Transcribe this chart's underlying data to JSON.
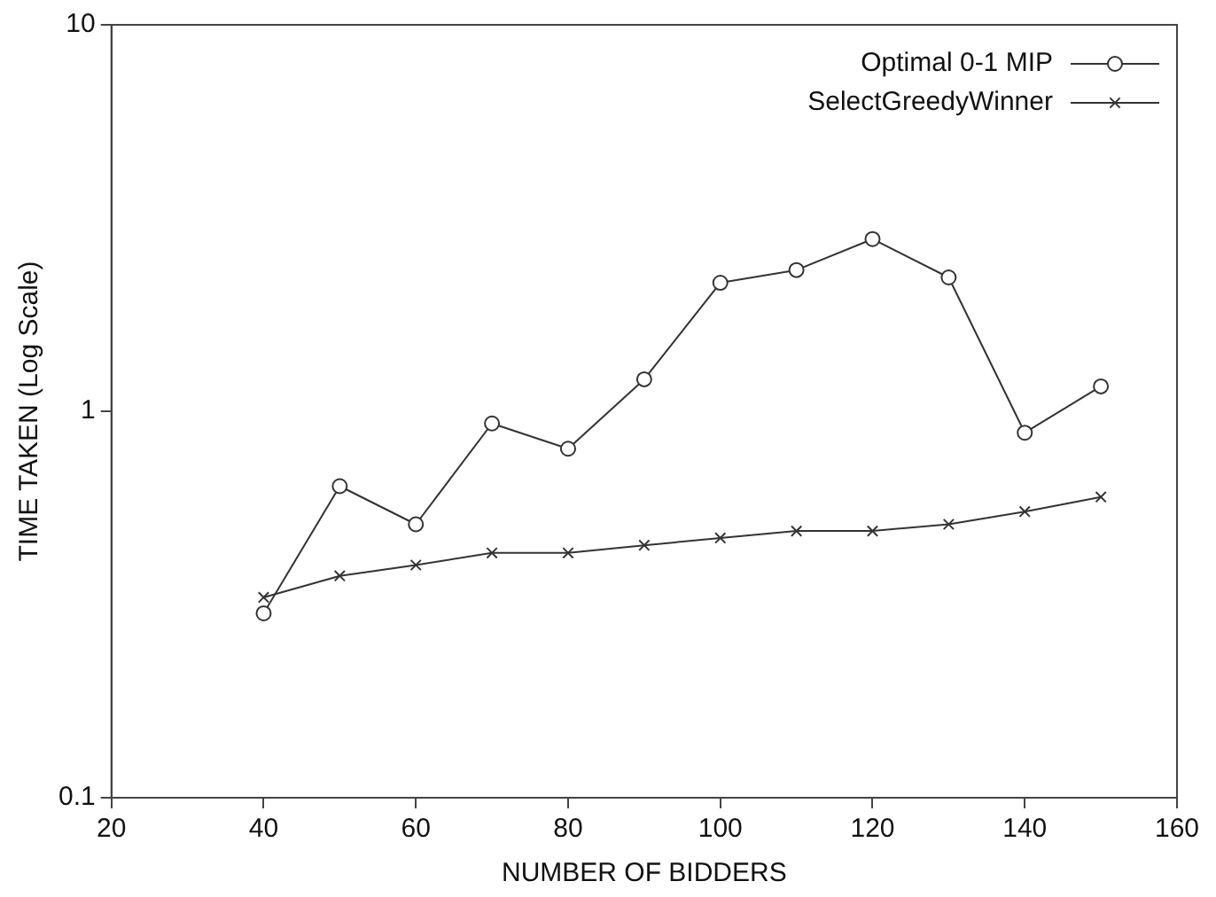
{
  "chart_data": {
    "type": "line",
    "xlabel": "NUMBER OF BIDDERS",
    "ylabel": "TIME TAKEN (Log Scale)",
    "log": "y",
    "grid": false,
    "legend": "top right",
    "x": [
      40,
      50,
      60,
      70,
      80,
      90,
      100,
      110,
      120,
      130,
      140,
      150
    ],
    "xlim": [
      20,
      160
    ],
    "xticks": [
      20,
      40,
      60,
      80,
      100,
      120,
      140,
      160
    ],
    "ylim": [
      0.1,
      10
    ],
    "yticks": [
      0.1,
      1,
      10
    ],
    "series": [
      {
        "name": "Optimal 0-1 MIP",
        "color": "#333333",
        "marker": "circle",
        "values": [
          0.3,
          0.64,
          0.51,
          0.93,
          0.8,
          1.21,
          2.15,
          2.32,
          2.79,
          2.22,
          0.88,
          1.16
        ]
      },
      {
        "name": "SelectGreedyWinner",
        "color": "#333333",
        "marker": "cross",
        "values": [
          0.33,
          0.375,
          0.4,
          0.43,
          0.43,
          0.45,
          0.47,
          0.49,
          0.49,
          0.51,
          0.55,
          0.6
        ]
      }
    ]
  }
}
